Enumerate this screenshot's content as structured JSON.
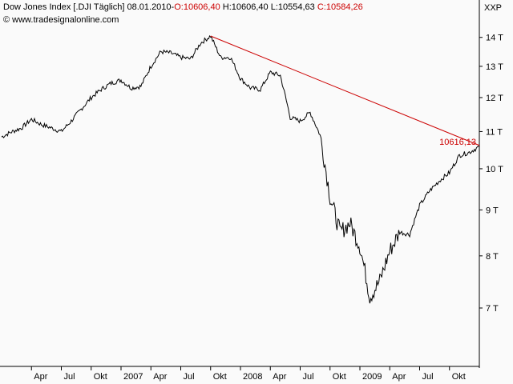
{
  "header": {
    "title": "Dow Jones Index [.DJI  Täglich]",
    "date": "08.01.2010",
    "ohlc_sep": "-",
    "open": "O:10606,40",
    "high": "H:10606,40",
    "low": "L:10554,63",
    "close": "C:10584,26",
    "website": "www.tradesignalonline.com",
    "scale_label": "XXP"
  },
  "colors": {
    "price": "#000000",
    "trendline": "#cc0000",
    "axis": "#000000",
    "background": "#fafafa",
    "close": "#cc0000"
  },
  "icons": {
    "website": "copyright-icon"
  },
  "chart_data": {
    "type": "line",
    "title": "Dow Jones Index [.DJI  Täglich]",
    "xlabel": "",
    "ylabel": "",
    "yscale": "log",
    "ylim": [
      6400,
      14600
    ],
    "y_ticks": [
      {
        "value": 7000,
        "label": "7 T"
      },
      {
        "value": 8000,
        "label": "8 T"
      },
      {
        "value": 9000,
        "label": "9 T"
      },
      {
        "value": 10000,
        "label": "10 T"
      },
      {
        "value": 11000,
        "label": "11 T"
      },
      {
        "value": 12000,
        "label": "12 T"
      },
      {
        "value": 13000,
        "label": "13 T"
      },
      {
        "value": 14000,
        "label": "14 T"
      }
    ],
    "x_ticks": [
      "Apr",
      "Jul",
      "Okt",
      "2007",
      "Apr",
      "Jul",
      "Okt",
      "2008",
      "Apr",
      "Jul",
      "Okt",
      "2009",
      "Apr",
      "Jul",
      "Okt"
    ],
    "grid": false,
    "series": [
      {
        "x": [
          "2006-01",
          "2006-02",
          "2006-03",
          "2006-04",
          "2006-05",
          "2006-06",
          "2006-07",
          "2006-08",
          "2006-09",
          "2006-10",
          "2006-11",
          "2006-12",
          "2007-01",
          "2007-02",
          "2007-03",
          "2007-04",
          "2007-05",
          "2007-06",
          "2007-07",
          "2007-08",
          "2007-09",
          "2007-10",
          "2007-11",
          "2007-12",
          "2008-01",
          "2008-02",
          "2008-03",
          "2008-04",
          "2008-05",
          "2008-06",
          "2008-07",
          "2008-08",
          "2008-09",
          "2008-10",
          "2008-11",
          "2008-12",
          "2009-01",
          "2009-02",
          "2009-03",
          "2009-04",
          "2009-05",
          "2009-06",
          "2009-07",
          "2009-08",
          "2009-09",
          "2009-10",
          "2009-11",
          "2009-12",
          "2010-01"
        ],
        "values": [
          10850,
          10990,
          11100,
          11350,
          11200,
          11100,
          11000,
          11300,
          11650,
          12000,
          12250,
          12450,
          12550,
          12300,
          12350,
          13000,
          13500,
          13450,
          13300,
          13250,
          13800,
          14050,
          13300,
          13300,
          12600,
          12300,
          12250,
          12800,
          12700,
          11400,
          11300,
          11550,
          10900,
          9300,
          8500,
          8700,
          8200,
          7200,
          7500,
          8100,
          8500,
          8450,
          9100,
          9450,
          9700,
          9900,
          10350,
          10430,
          10584
        ]
      }
    ],
    "annotations": [
      {
        "type": "trendline",
        "from": {
          "x": "2007-10",
          "y": 14050
        },
        "to": {
          "x": "2010-01",
          "y": 10616.13
        },
        "label": "10616,13"
      }
    ]
  }
}
